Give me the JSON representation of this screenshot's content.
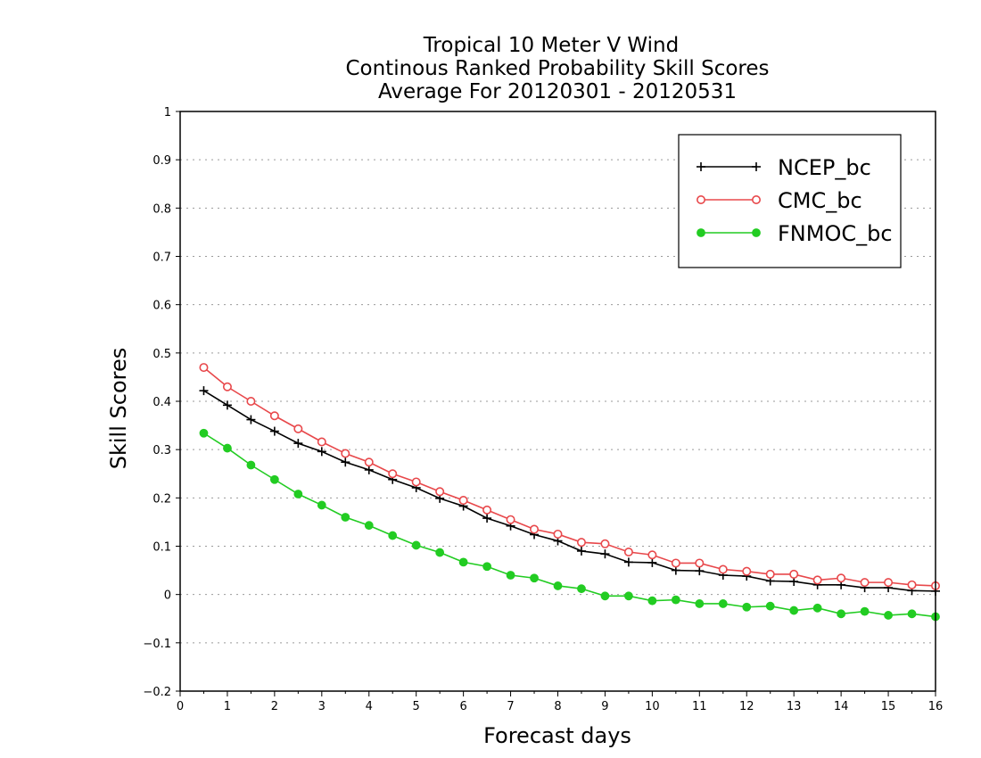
{
  "chart_data": {
    "type": "line",
    "title_lines": [
      "Tropical 10 Meter V Wind",
      "Continous Ranked Probability Skill Scores",
      "Average For 20120301 - 20120531"
    ],
    "xlabel": "Forecast days",
    "ylabel": "Skill Scores",
    "xlim": [
      0,
      16
    ],
    "ylim": [
      -0.2,
      1
    ],
    "xticks": [
      "0",
      "1",
      "2",
      "3",
      "4",
      "5",
      "6",
      "7",
      "8",
      "9",
      "10",
      "11",
      "12",
      "13",
      "14",
      "15",
      "16"
    ],
    "yticks": [
      "−0.2",
      "−0.1",
      "0",
      "0.1",
      "0.2",
      "0.3",
      "0.4",
      "0.5",
      "0.6",
      "0.7",
      "0.8",
      "0.9",
      "1"
    ],
    "ytick_values": [
      -0.2,
      -0.1,
      0,
      0.1,
      0.2,
      0.3,
      0.4,
      0.5,
      0.6,
      0.7,
      0.8,
      0.9,
      1
    ],
    "grid": "horizontal-dotted",
    "legend_position": "top-right",
    "x": [
      0.5,
      1,
      1.5,
      2,
      2.5,
      3,
      3.5,
      4,
      4.5,
      5,
      5.5,
      6,
      6.5,
      7,
      7.5,
      8,
      8.5,
      9,
      9.5,
      10,
      10.5,
      11,
      11.5,
      12,
      12.5,
      13,
      13.5,
      14,
      14.5,
      15,
      15.5,
      16
    ],
    "series": [
      {
        "name": "NCEP_bc",
        "color": "#000000",
        "marker": "plus",
        "values": [
          0.422,
          0.392,
          0.362,
          0.338,
          0.313,
          0.296,
          0.274,
          0.258,
          0.238,
          0.221,
          0.199,
          0.183,
          0.158,
          0.142,
          0.124,
          0.111,
          0.09,
          0.084,
          0.067,
          0.066,
          0.05,
          0.049,
          0.04,
          0.038,
          0.028,
          0.027,
          0.02,
          0.02,
          0.014,
          0.014,
          0.008,
          0.007
        ]
      },
      {
        "name": "CMC_bc",
        "color": "#e8484b",
        "marker": "open-circle",
        "values": [
          0.47,
          0.43,
          0.4,
          0.37,
          0.343,
          0.316,
          0.292,
          0.274,
          0.25,
          0.233,
          0.213,
          0.195,
          0.175,
          0.155,
          0.135,
          0.125,
          0.108,
          0.105,
          0.088,
          0.082,
          0.065,
          0.065,
          0.052,
          0.048,
          0.042,
          0.042,
          0.03,
          0.034,
          0.025,
          0.025,
          0.02,
          0.018
        ]
      },
      {
        "name": "FNMOC_bc",
        "color": "#22cc22",
        "marker": "filled-circle",
        "values": [
          0.334,
          0.303,
          0.268,
          0.238,
          0.208,
          0.185,
          0.16,
          0.143,
          0.122,
          0.102,
          0.087,
          0.067,
          0.058,
          0.04,
          0.034,
          0.018,
          0.012,
          -0.003,
          -0.003,
          -0.013,
          -0.011,
          -0.019,
          -0.019,
          -0.026,
          -0.024,
          -0.033,
          -0.028,
          -0.04,
          -0.035,
          -0.043,
          -0.04,
          -0.046
        ]
      }
    ]
  }
}
